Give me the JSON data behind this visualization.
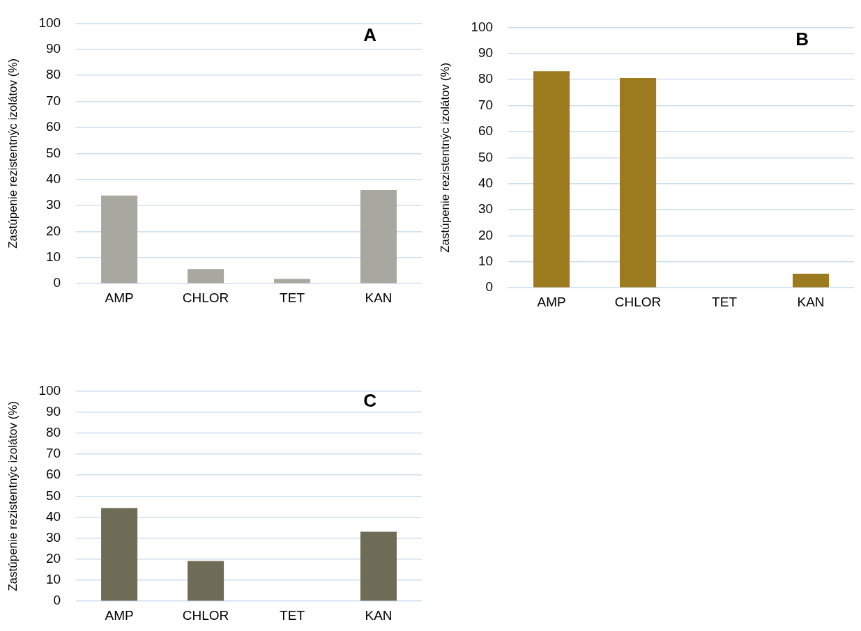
{
  "chart_data": [
    {
      "type": "bar",
      "title": "A",
      "ylabel": "Zastúpenie rezistentnýc izolátov (%)",
      "categories": [
        "AMP",
        "CHLOR",
        "TET",
        "KAN"
      ],
      "values": [
        33.8,
        5.6,
        1.8,
        35.9
      ],
      "color": "#a8a8a0",
      "ylim": [
        0,
        100
      ],
      "yticks": [
        0,
        10,
        20,
        30,
        40,
        50,
        60,
        70,
        80,
        90,
        100
      ],
      "grid": "y"
    },
    {
      "type": "bar",
      "title": "B",
      "ylabel": "Zastúpenie rezistentnýc izolátov (%)",
      "categories": [
        "AMP",
        "CHLOR",
        "TET",
        "KAN"
      ],
      "values": [
        83.2,
        80.6,
        0,
        5.4
      ],
      "color": "#9c7a1e",
      "ylim": [
        0,
        100
      ],
      "yticks": [
        0,
        10,
        20,
        30,
        40,
        50,
        60,
        70,
        80,
        90,
        100
      ],
      "grid": "y"
    },
    {
      "type": "bar",
      "title": "C",
      "ylabel": "Zastúpenie rezistentnýc izolátov (%)",
      "categories": [
        "AMP",
        "CHLOR",
        "TET",
        "KAN"
      ],
      "values": [
        44.3,
        19.1,
        0,
        33.0
      ],
      "color": "#6e6c56",
      "ylim": [
        0,
        100
      ],
      "yticks": [
        0,
        10,
        20,
        30,
        40,
        50,
        60,
        70,
        80,
        90,
        100
      ],
      "grid": "y"
    }
  ]
}
